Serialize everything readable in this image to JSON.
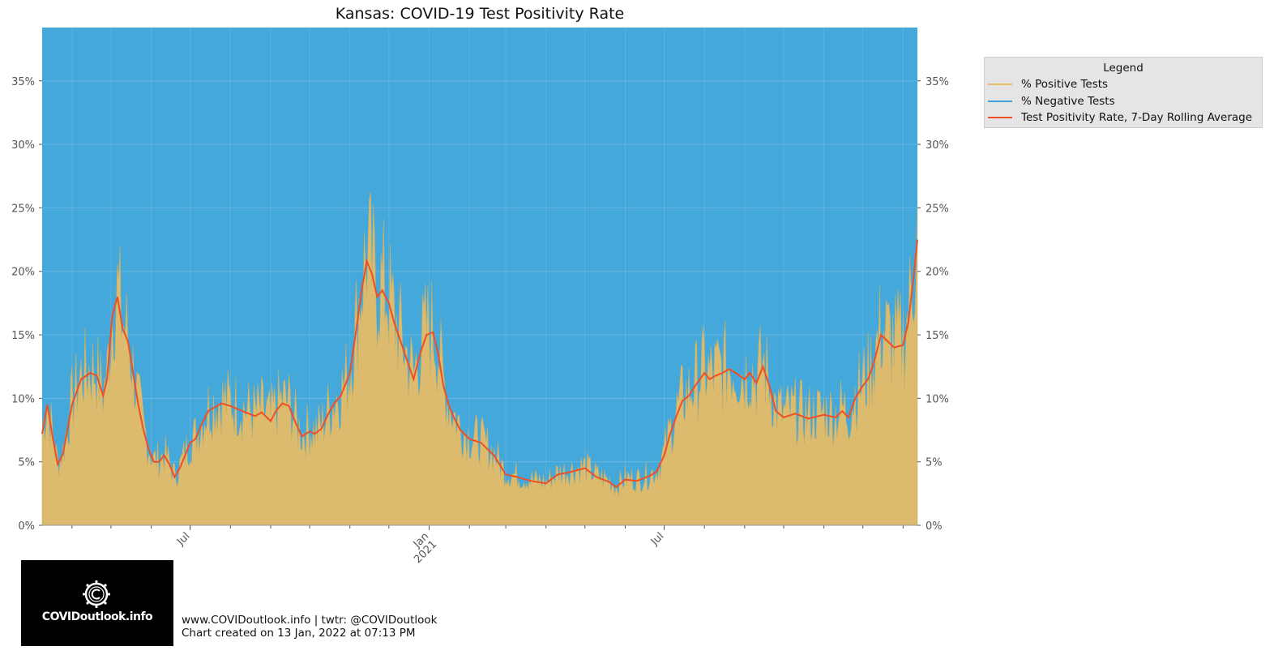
{
  "chart_data": {
    "type": "area",
    "title": "Kansas: COVID-19 Test Positivity Rate",
    "ylim": [
      0,
      39.2
    ],
    "y_ticks": [
      "0%",
      "5%",
      "10%",
      "15%",
      "20%",
      "25%",
      "30%",
      "35%"
    ],
    "y_tick_values": [
      0,
      5,
      10,
      15,
      20,
      25,
      30,
      35
    ],
    "x_tick_labels": [
      {
        "date": "2020-07-01",
        "label": "Jul",
        "sub": ""
      },
      {
        "date": "2021-01-01",
        "label": "Jan",
        "sub": "2021"
      },
      {
        "date": "2021-07-01",
        "label": "Jul",
        "sub": ""
      }
    ],
    "x_range": [
      "2020-03-09",
      "2022-01-12"
    ],
    "grid": true,
    "legend": {
      "title": "Legend",
      "placement": "outside-right",
      "entries": [
        {
          "label": "% Positive Tests",
          "color": "#e5bd69"
        },
        {
          "label": "% Negative Tests",
          "color": "#3ba3d8"
        },
        {
          "label": "Test Positivity Rate, 7-Day Rolling Average",
          "color": "#f04e23"
        }
      ]
    },
    "series": [
      {
        "name": "Test Positivity Rate, 7-Day Rolling Average",
        "x": [
          "2020-03-09",
          "2020-03-13",
          "2020-03-17",
          "2020-03-21",
          "2020-03-25",
          "2020-04-01",
          "2020-04-08",
          "2020-04-15",
          "2020-04-20",
          "2020-04-25",
          "2020-04-28",
          "2020-05-02",
          "2020-05-06",
          "2020-05-10",
          "2020-05-14",
          "2020-05-18",
          "2020-05-22",
          "2020-05-26",
          "2020-05-30",
          "2020-06-03",
          "2020-06-07",
          "2020-06-11",
          "2020-06-15",
          "2020-06-19",
          "2020-06-23",
          "2020-06-27",
          "2020-07-01",
          "2020-07-05",
          "2020-07-10",
          "2020-07-15",
          "2020-07-20",
          "2020-07-25",
          "2020-08-01",
          "2020-08-10",
          "2020-08-20",
          "2020-08-25",
          "2020-09-01",
          "2020-09-05",
          "2020-09-10",
          "2020-09-15",
          "2020-09-20",
          "2020-09-25",
          "2020-10-01",
          "2020-10-05",
          "2020-10-10",
          "2020-10-15",
          "2020-10-20",
          "2020-10-25",
          "2020-11-01",
          "2020-11-06",
          "2020-11-10",
          "2020-11-14",
          "2020-11-18",
          "2020-11-22",
          "2020-11-26",
          "2020-12-01",
          "2020-12-05",
          "2020-12-10",
          "2020-12-15",
          "2020-12-20",
          "2020-12-25",
          "2020-12-30",
          "2021-01-04",
          "2021-01-08",
          "2021-01-12",
          "2021-01-16",
          "2021-01-20",
          "2021-01-25",
          "2021-02-01",
          "2021-02-10",
          "2021-02-20",
          "2021-03-01",
          "2021-03-10",
          "2021-03-20",
          "2021-04-01",
          "2021-04-10",
          "2021-04-20",
          "2021-05-01",
          "2021-05-10",
          "2021-05-20",
          "2021-05-25",
          "2021-06-01",
          "2021-06-10",
          "2021-06-20",
          "2021-06-25",
          "2021-07-01",
          "2021-07-05",
          "2021-07-10",
          "2021-07-15",
          "2021-07-20",
          "2021-07-25",
          "2021-08-01",
          "2021-08-05",
          "2021-08-10",
          "2021-08-15",
          "2021-08-20",
          "2021-08-25",
          "2021-09-01",
          "2021-09-05",
          "2021-09-10",
          "2021-09-15",
          "2021-09-20",
          "2021-09-25",
          "2021-10-01",
          "2021-10-10",
          "2021-10-20",
          "2021-11-01",
          "2021-11-10",
          "2021-11-15",
          "2021-11-20",
          "2021-11-25",
          "2021-12-01",
          "2021-12-05",
          "2021-12-10",
          "2021-12-15",
          "2021-12-20",
          "2021-12-25",
          "2022-01-01",
          "2022-01-05",
          "2022-01-09",
          "2022-01-12"
        ],
        "values": [
          7.2,
          9.5,
          7.0,
          4.8,
          5.6,
          9.5,
          11.5,
          12.0,
          11.8,
          10.2,
          11.5,
          16.5,
          18.0,
          15.5,
          14.5,
          12.0,
          9.5,
          7.5,
          6.0,
          5.0,
          5.0,
          5.5,
          4.8,
          3.8,
          4.5,
          5.5,
          6.5,
          6.8,
          8.0,
          9.0,
          9.3,
          9.6,
          9.4,
          9.0,
          8.6,
          8.9,
          8.2,
          9.0,
          9.6,
          9.4,
          8.1,
          7.0,
          7.4,
          7.2,
          7.6,
          8.7,
          9.6,
          10.2,
          12.0,
          15.5,
          18.5,
          20.8,
          19.8,
          18.0,
          18.5,
          17.5,
          16.0,
          14.5,
          13.0,
          11.5,
          13.5,
          15.0,
          15.2,
          13.5,
          11.0,
          9.5,
          8.5,
          7.5,
          6.8,
          6.5,
          5.5,
          4.0,
          3.8,
          3.5,
          3.3,
          4.0,
          4.2,
          4.5,
          3.8,
          3.4,
          3.0,
          3.6,
          3.5,
          3.9,
          4.2,
          5.5,
          7.0,
          8.5,
          9.8,
          10.2,
          11.0,
          12.0,
          11.5,
          11.8,
          12.0,
          12.3,
          12.0,
          11.5,
          12.0,
          11.2,
          12.5,
          11.0,
          9.0,
          8.5,
          8.8,
          8.4,
          8.7,
          8.5,
          9.0,
          8.5,
          10.0,
          11.0,
          11.5,
          13.0,
          15.0,
          14.5,
          14.0,
          14.2,
          16.0,
          19.5,
          22.5
        ]
      }
    ]
  },
  "footer": {
    "line1": "www.COVIDoutlook.info | twtr: @COVIDoutlook",
    "line2": "Chart created on 13 Jan, 2022 at 07:13 PM"
  },
  "logo": {
    "text": "COVIDoutlook.info",
    "icon": "virus-c-icon"
  },
  "colors": {
    "positive": "#e5bd69",
    "negative": "#3ba3d8",
    "average": "#f04e23",
    "background": "#ffffff"
  }
}
